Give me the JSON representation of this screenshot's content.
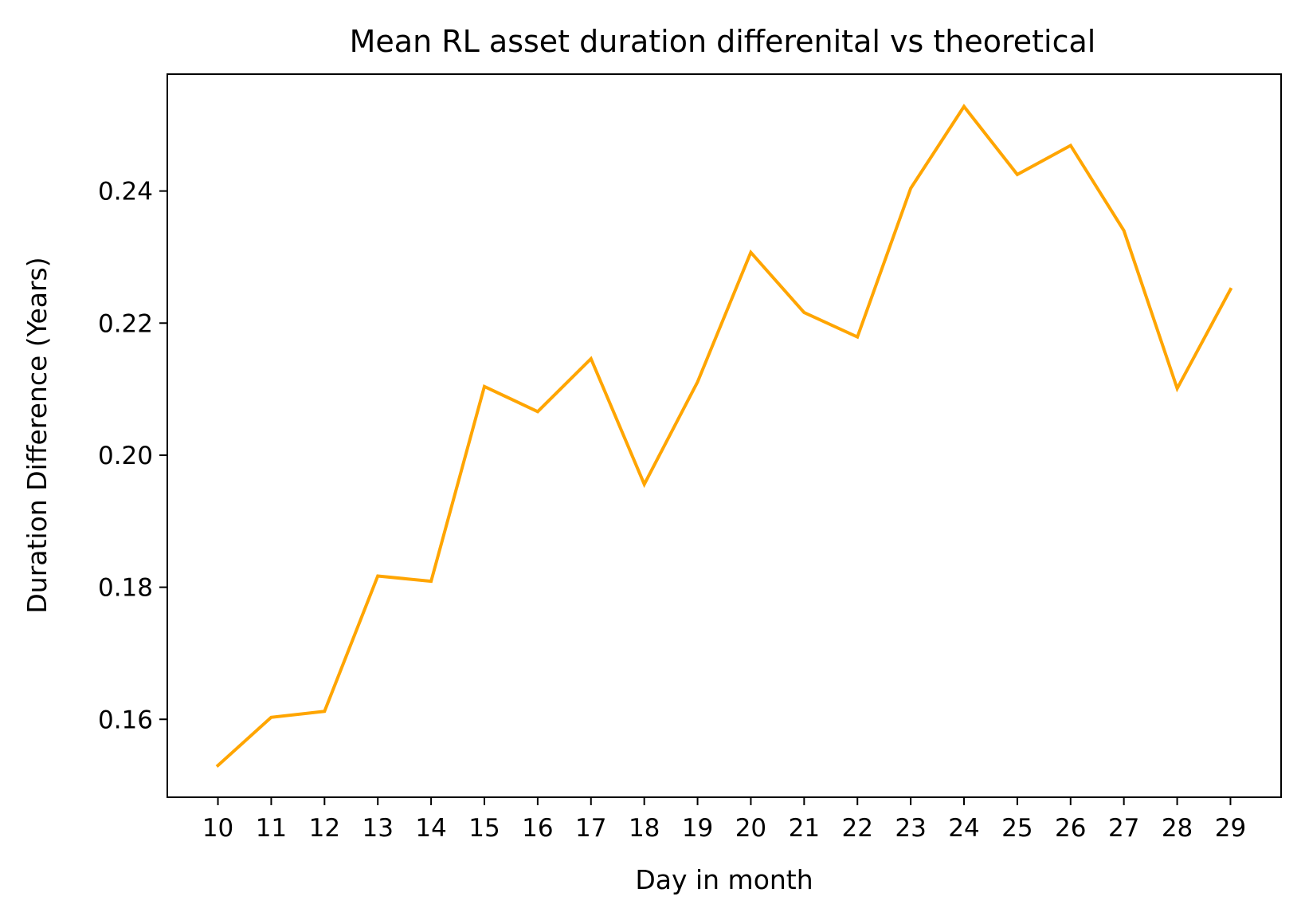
{
  "chart_data": {
    "type": "line",
    "title": "Mean RL asset duration differenital vs theoretical",
    "xlabel": "Day in month",
    "ylabel": "Duration Difference (Years)",
    "x": [
      10,
      11,
      12,
      13,
      14,
      15,
      16,
      17,
      18,
      19,
      20,
      21,
      22,
      23,
      24,
      25,
      26,
      27,
      28,
      29
    ],
    "x_tick_labels": [
      "10",
      "11",
      "12",
      "13",
      "14",
      "15",
      "16",
      "17",
      "18",
      "19",
      "20",
      "21",
      "22",
      "23",
      "24",
      "25",
      "26",
      "27",
      "28",
      "29"
    ],
    "series": [
      {
        "values": [
          0.153,
          0.1603,
          0.1612,
          0.1817,
          0.1809,
          0.2104,
          0.2066,
          0.2146,
          0.1956,
          0.2111,
          0.2307,
          0.2216,
          0.2179,
          0.2404,
          0.2528,
          0.2425,
          0.2469,
          0.234,
          0.2101,
          0.2251
        ],
        "color": "#FFA500"
      }
    ],
    "y_ticks": [
      0.16,
      0.18,
      0.2,
      0.22,
      0.24
    ],
    "y_tick_labels": [
      "0.16",
      "0.18",
      "0.20",
      "0.22",
      "0.24"
    ],
    "xlim": [
      9.05,
      29.95
    ],
    "ylim": [
      0.1482,
      0.2577
    ],
    "grid": false,
    "legend": "none"
  }
}
